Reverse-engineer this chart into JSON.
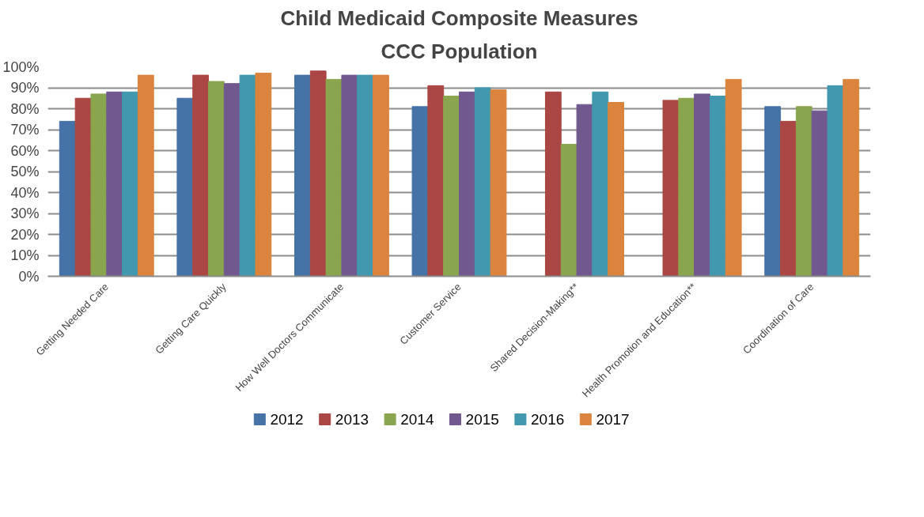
{
  "chart_data": {
    "type": "bar",
    "title": "Child Medicaid Composite Measures",
    "subtitle": "CCC Population",
    "categories": [
      "Getting Needed Care",
      "Getting Care Quickly",
      "How Well Doctors Communicate",
      "Customer Service",
      "Shared Decision-Making**",
      "Health Promotion and Education**",
      "Coordination of Care"
    ],
    "series": [
      {
        "name": "2012",
        "color": "#4572a7",
        "values": [
          74,
          85,
          96,
          81,
          null,
          null,
          81
        ]
      },
      {
        "name": "2013",
        "color": "#aa4643",
        "values": [
          85,
          96,
          98,
          91,
          88,
          84,
          74
        ]
      },
      {
        "name": "2014",
        "color": "#89a54e",
        "values": [
          87,
          93,
          94,
          86,
          63,
          85,
          81
        ]
      },
      {
        "name": "2015",
        "color": "#71588f",
        "values": [
          88,
          92,
          96,
          88,
          82,
          87,
          79
        ]
      },
      {
        "name": "2016",
        "color": "#4198af",
        "values": [
          88,
          96,
          96,
          90,
          88,
          86,
          91
        ]
      },
      {
        "name": "2017",
        "color": "#db843d",
        "values": [
          96,
          97,
          96,
          89,
          83,
          94,
          94
        ]
      }
    ],
    "ylim": [
      0,
      100
    ],
    "yticks": [
      {
        "value": 0,
        "label": "0%"
      },
      {
        "value": 10,
        "label": "10%"
      },
      {
        "value": 20,
        "label": "20%"
      },
      {
        "value": 30,
        "label": "30%"
      },
      {
        "value": 40,
        "label": "40%"
      },
      {
        "value": 50,
        "label": "50%"
      },
      {
        "value": 60,
        "label": "60%"
      },
      {
        "value": 70,
        "label": "70%"
      },
      {
        "value": 80,
        "label": "80%"
      },
      {
        "value": 90,
        "label": "90%"
      },
      {
        "value": 100,
        "label": "100%"
      }
    ],
    "grid": "y",
    "legend": "bottom"
  }
}
